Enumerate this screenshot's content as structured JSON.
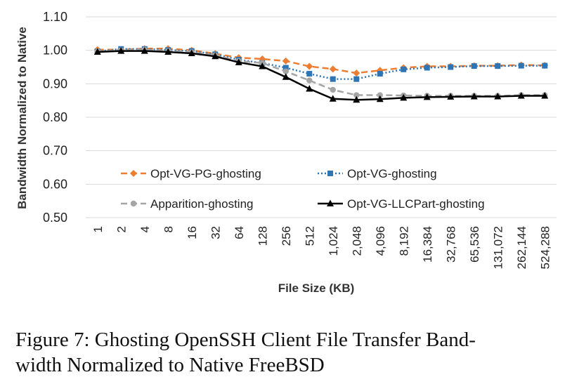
{
  "caption": {
    "line1": "Figure 7: Ghosting OpenSSH Client File Transfer Band-",
    "line2": "width Normalized to Native FreeBSD"
  },
  "chart_data": {
    "type": "line",
    "xlabel": "File Size (KB)",
    "ylabel": "Bandwidth Normalized to Native",
    "ylim": [
      0.5,
      1.1
    ],
    "yticks": [
      "0.50",
      "0.60",
      "0.70",
      "0.80",
      "0.90",
      "1.00",
      "1.10"
    ],
    "grid": "horizontal",
    "legend_position": "bottom-inside, two columns",
    "categories": [
      "1",
      "2",
      "4",
      "8",
      "16",
      "32",
      "64",
      "128",
      "256",
      "512",
      "1,024",
      "2,048",
      "4,096",
      "8,192",
      "16,384",
      "32,768",
      "65,536",
      "131,072",
      "262,144",
      "524,288"
    ],
    "series": [
      {
        "name": "Opt-VG-PG-ghosting",
        "color": "#ED7D31",
        "line": "dashed",
        "marker": "diamond",
        "values": [
          1.002,
          1.002,
          1.005,
          1.005,
          1.0,
          0.99,
          0.978,
          0.974,
          0.968,
          0.952,
          0.944,
          0.932,
          0.94,
          0.948,
          0.952,
          0.952,
          0.954,
          0.954,
          0.956,
          0.955
        ]
      },
      {
        "name": "Opt-VG-ghosting",
        "color": "#2E75B6",
        "line": "dotted",
        "marker": "square",
        "values": [
          0.997,
          1.004,
          1.004,
          1.001,
          0.998,
          0.988,
          0.972,
          0.962,
          0.948,
          0.93,
          0.914,
          0.914,
          0.93,
          0.943,
          0.948,
          0.95,
          0.953,
          0.953,
          0.954,
          0.954
        ]
      },
      {
        "name": "Apparition-ghosting",
        "color": "#A5A5A5",
        "line": "dashed",
        "marker": "circle",
        "values": [
          0.997,
          1.0,
          1.002,
          0.998,
          0.994,
          0.985,
          0.968,
          0.962,
          0.937,
          0.91,
          0.882,
          0.866,
          0.866,
          0.865,
          0.864,
          0.864,
          0.864,
          0.864,
          0.866,
          0.866
        ]
      },
      {
        "name": "Opt-VG-LLCPart-ghosting",
        "color": "#000000",
        "line": "solid",
        "marker": "triangle",
        "values": [
          0.995,
          0.998,
          0.998,
          0.995,
          0.991,
          0.982,
          0.964,
          0.952,
          0.92,
          0.885,
          0.855,
          0.852,
          0.854,
          0.858,
          0.86,
          0.861,
          0.862,
          0.862,
          0.864,
          0.864
        ]
      }
    ]
  }
}
